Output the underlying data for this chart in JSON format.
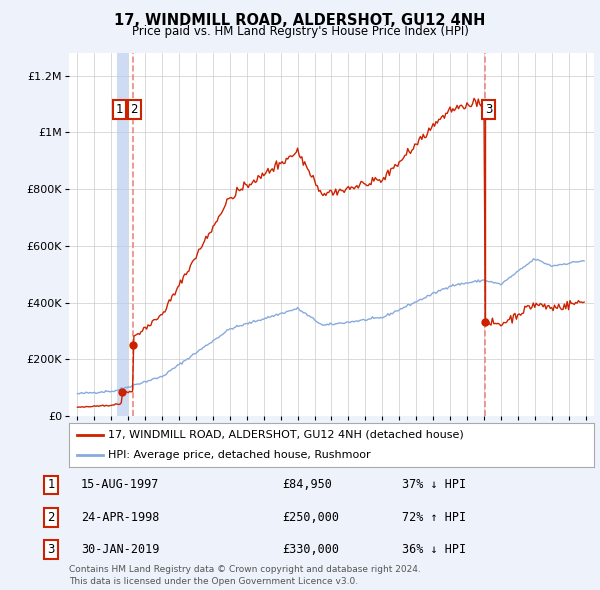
{
  "title": "17, WINDMILL ROAD, ALDERSHOT, GU12 4NH",
  "subtitle": "Price paid vs. HM Land Registry's House Price Index (HPI)",
  "legend_label_red": "17, WINDMILL ROAD, ALDERSHOT, GU12 4NH (detached house)",
  "legend_label_blue": "HPI: Average price, detached house, Rushmoor",
  "footer_line1": "Contains HM Land Registry data © Crown copyright and database right 2024.",
  "footer_line2": "This data is licensed under the Open Government Licence v3.0.",
  "transactions": [
    {
      "num": 1,
      "date": "15-AUG-1997",
      "price": 84950,
      "pct": "37%",
      "dir": "↓",
      "year": 1997.62
    },
    {
      "num": 2,
      "date": "24-APR-1998",
      "price": 250000,
      "pct": "72%",
      "dir": "↑",
      "year": 1998.3
    },
    {
      "num": 3,
      "date": "30-JAN-2019",
      "price": 330000,
      "pct": "36%",
      "dir": "↓",
      "year": 2019.08
    }
  ],
  "xlim": [
    1994.5,
    2025.5
  ],
  "ylim": [
    0,
    1280000
  ],
  "yticks": [
    0,
    200000,
    400000,
    600000,
    800000,
    1000000,
    1200000
  ],
  "ytick_labels": [
    "£0",
    "£200K",
    "£400K",
    "£600K",
    "£800K",
    "£1M",
    "£1.2M"
  ],
  "xticks": [
    1995,
    1996,
    1997,
    1998,
    1999,
    2000,
    2001,
    2002,
    2003,
    2004,
    2005,
    2006,
    2007,
    2008,
    2009,
    2010,
    2011,
    2012,
    2013,
    2014,
    2015,
    2016,
    2017,
    2018,
    2019,
    2020,
    2021,
    2022,
    2023,
    2024,
    2025
  ],
  "bg_color": "#eef2fb",
  "plot_bg_color": "#ffffff",
  "red_color": "#cc2200",
  "blue_color": "#88aadd",
  "vline_solid_color": "#bbccee",
  "vline_dash_color": "#ee8888",
  "grid_color": "#cccccc",
  "box_border_color": "#cc2200"
}
